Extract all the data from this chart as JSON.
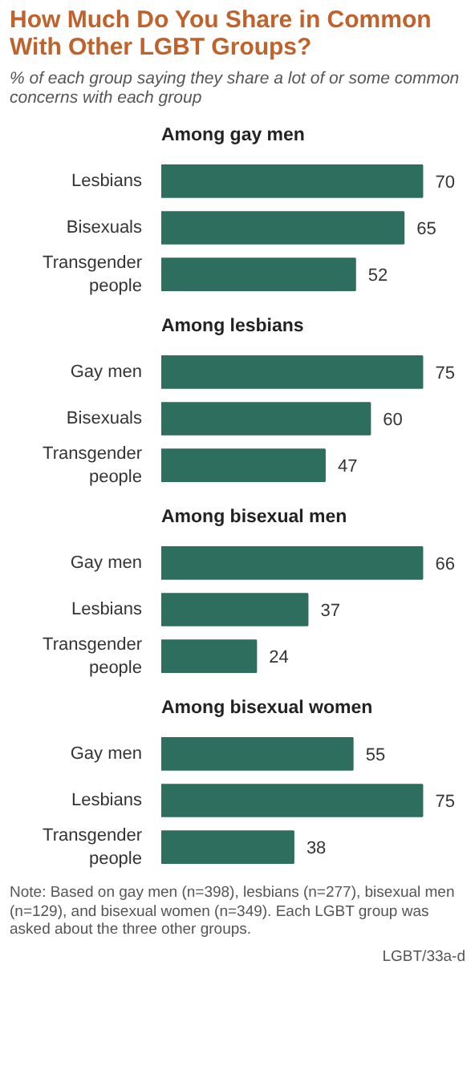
{
  "chart_data": [
    {
      "type": "other",
      "title": "How Much Do You Share in Common With Other LGBT Groups?",
      "subtitle": "% of each group saying they share a lot of or some common concerns with each group"
    },
    {
      "type": "bar",
      "orientation": "horizontal",
      "title": "Among gay men",
      "categories": [
        "Lesbians",
        "Bisexuals",
        "Transgender people"
      ],
      "values": [
        70,
        65,
        52
      ],
      "color": "#2e6e5e",
      "data_labels": true,
      "tick_labels": "y"
    },
    {
      "type": "bar",
      "orientation": "horizontal",
      "title": "Among lesbians",
      "categories": [
        "Gay men",
        "Bisexuals",
        "Transgender people"
      ],
      "values": [
        75,
        60,
        47
      ],
      "color": "#2e6e5e",
      "data_labels": true,
      "tick_labels": "y"
    },
    {
      "type": "bar",
      "orientation": "horizontal",
      "title": "Among bisexual men",
      "categories": [
        "Gay men",
        "Lesbians",
        "Transgender people"
      ],
      "values": [
        66,
        37,
        24
      ],
      "color": "#2e6e5e",
      "data_labels": true,
      "tick_labels": "y"
    },
    {
      "type": "bar",
      "orientation": "horizontal",
      "title": "Among bisexual women",
      "categories": [
        "Gay men",
        "Lesbians",
        "Transgender people"
      ],
      "values": [
        55,
        75,
        38
      ],
      "color": "#2e6e5e",
      "data_labels": true,
      "tick_labels": "y",
      "annotations": [
        "Note: Based on gay men (n=398), lesbians (n=277), bisexual men (n=129), and bisexual women (n=349). Each LGBT group was asked about the three other groups.",
        "LGBT/33a-d"
      ]
    }
  ]
}
